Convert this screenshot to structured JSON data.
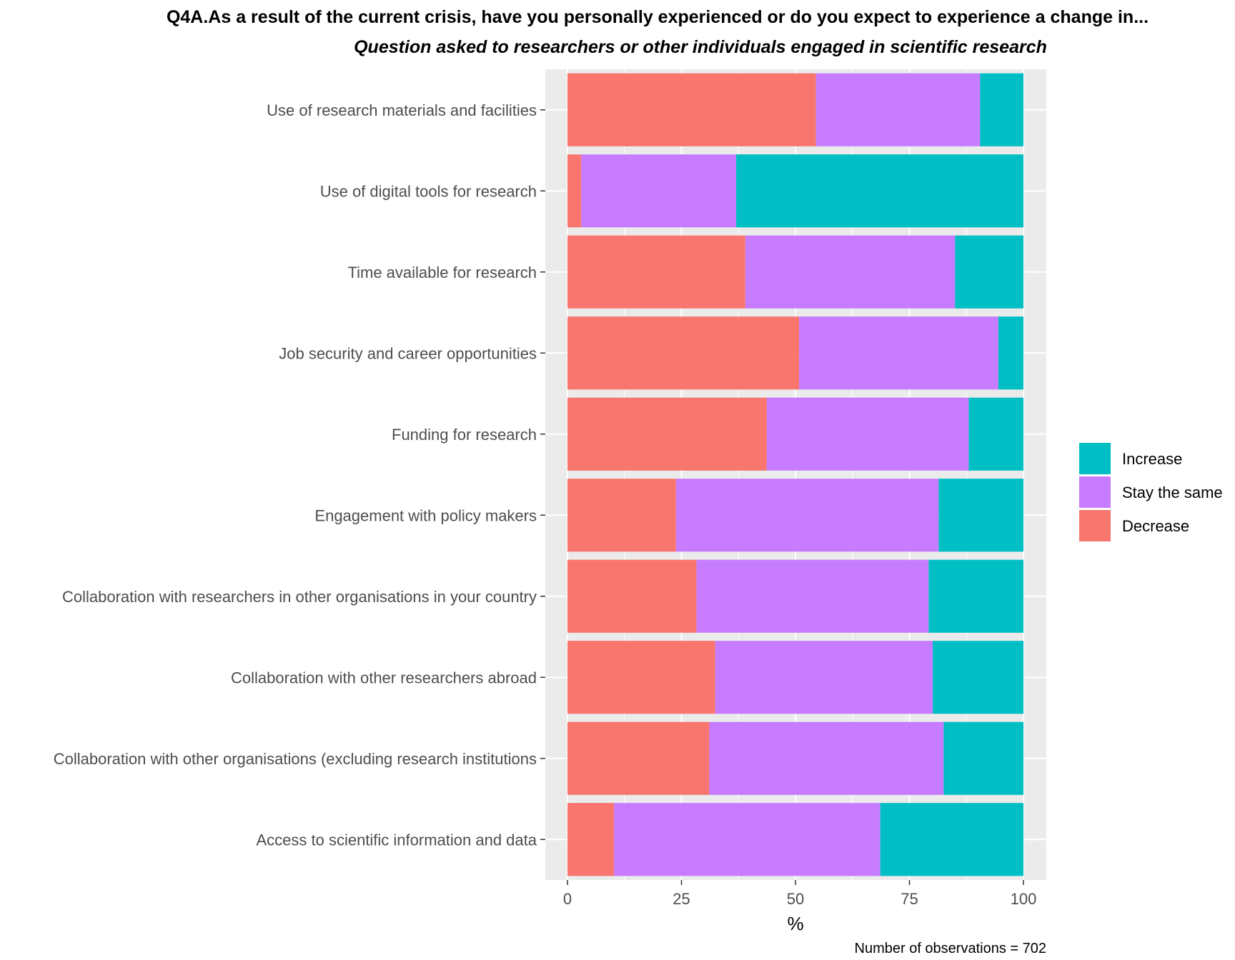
{
  "header": {
    "title": "Q4A.As a result of the current crisis, have you personally experienced or do you expect to experience a change in...",
    "subtitle": "Question asked to researchers or other individuals engaged in scientific research"
  },
  "caption": "Number of observations = 702",
  "colors": {
    "increase": "#00BFC4",
    "stay_the_same": "#C77CFF",
    "decrease": "#F8766D",
    "panel_bg": "#EBEBEB",
    "grid": "#FFFFFF"
  },
  "legend": [
    {
      "key": "increase",
      "label": "Increase"
    },
    {
      "key": "stay_the_same",
      "label": "Stay the same"
    },
    {
      "key": "decrease",
      "label": "Decrease"
    }
  ],
  "chart_data": {
    "type": "bar",
    "orientation": "horizontal",
    "stacked": true,
    "xlabel": "%",
    "ylabel": "",
    "xlim": [
      0,
      100
    ],
    "xticks": [
      0,
      25,
      50,
      75,
      100
    ],
    "grid": true,
    "legend_position": "right",
    "categories": [
      "Use of research materials and facilities",
      "Use of digital tools for research",
      "Time available for research",
      "Job security and career opportunities",
      "Funding for research",
      "Engagement with policy makers",
      "Collaboration with researchers in other organisations in your country",
      "Collaboration with other researchers abroad",
      "Collaboration with other organisations (excluding research institutions",
      "Access to scientific information and data"
    ],
    "series": [
      {
        "name": "Decrease",
        "color_key": "decrease",
        "values": [
          54.5,
          3,
          39,
          50.8,
          43.7,
          23.8,
          28.3,
          32.4,
          31.1,
          10.2
        ]
      },
      {
        "name": "Stay the same",
        "color_key": "stay_the_same",
        "values": [
          36,
          34,
          46,
          43.7,
          44.3,
          57.6,
          50.9,
          47.7,
          51.4,
          58.4
        ]
      },
      {
        "name": "Increase",
        "color_key": "increase",
        "values": [
          9.5,
          63,
          15,
          5.5,
          12,
          18.6,
          20.8,
          19.9,
          17.5,
          31.4
        ]
      }
    ]
  }
}
